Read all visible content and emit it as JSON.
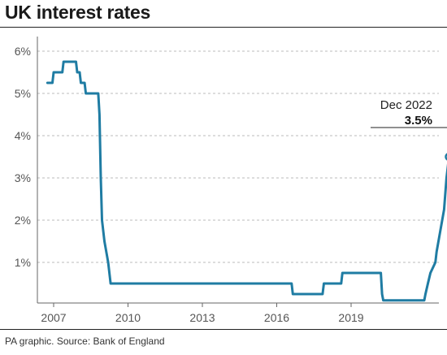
{
  "header": {
    "title": "UK interest rates"
  },
  "footer": {
    "source": "PA graphic. Source: Bank of England"
  },
  "colors": {
    "line": "#1f7ca3",
    "grid": "#bbbbbb",
    "axis": "#666666"
  },
  "chart_data": {
    "type": "line",
    "title": "UK interest rates",
    "xlabel": "",
    "ylabel": "",
    "xlim": [
      2006.7,
      2023.3
    ],
    "ylim": [
      0,
      6.25
    ],
    "grid": true,
    "xticks": [
      {
        "value": 2007,
        "label": "2007"
      },
      {
        "value": 2010,
        "label": "2010"
      },
      {
        "value": 2013,
        "label": "2013"
      },
      {
        "value": 2016,
        "label": "2016"
      },
      {
        "value": 2019,
        "label": "2019"
      }
    ],
    "yticks": [
      {
        "value": 1,
        "label": "1%"
      },
      {
        "value": 2,
        "label": "2%"
      },
      {
        "value": 3,
        "label": "3%"
      },
      {
        "value": 4,
        "label": "4%"
      },
      {
        "value": 5,
        "label": "5%"
      },
      {
        "value": 6,
        "label": "6%"
      }
    ],
    "series": [
      {
        "points": [
          [
            2006.75,
            5.25
          ],
          [
            2006.95,
            5.25
          ],
          [
            2007.0,
            5.5
          ],
          [
            2007.35,
            5.5
          ],
          [
            2007.4,
            5.75
          ],
          [
            2007.9,
            5.75
          ],
          [
            2007.95,
            5.5
          ],
          [
            2008.05,
            5.5
          ],
          [
            2008.1,
            5.25
          ],
          [
            2008.25,
            5.25
          ],
          [
            2008.3,
            5.0
          ],
          [
            2008.8,
            5.0
          ],
          [
            2008.85,
            4.5
          ],
          [
            2008.9,
            3.0
          ],
          [
            2008.95,
            2.0
          ],
          [
            2009.05,
            1.5
          ],
          [
            2009.2,
            1.0
          ],
          [
            2009.3,
            0.5
          ],
          [
            2016.6,
            0.5
          ],
          [
            2016.65,
            0.25
          ],
          [
            2017.85,
            0.25
          ],
          [
            2017.9,
            0.5
          ],
          [
            2018.6,
            0.5
          ],
          [
            2018.65,
            0.75
          ],
          [
            2020.2,
            0.75
          ],
          [
            2020.25,
            0.25
          ],
          [
            2020.3,
            0.1
          ],
          [
            2021.95,
            0.1
          ],
          [
            2022.0,
            0.25
          ],
          [
            2022.1,
            0.5
          ],
          [
            2022.2,
            0.75
          ],
          [
            2022.4,
            1.0
          ],
          [
            2022.45,
            1.25
          ],
          [
            2022.6,
            1.75
          ],
          [
            2022.75,
            2.25
          ],
          [
            2022.85,
            3.0
          ],
          [
            2022.95,
            3.5
          ]
        ]
      }
    ],
    "annotation": {
      "label": "Dec 2022",
      "value_label": "3.5%",
      "x": 2022.95,
      "y": 3.5
    }
  }
}
